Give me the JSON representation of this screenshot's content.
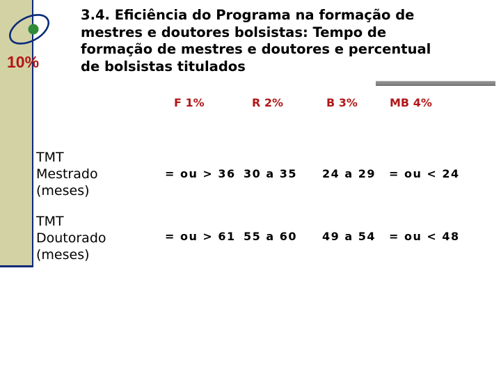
{
  "header": {
    "weight": "10%",
    "title_lines": [
      "3.4. Eficiência do Programa na formação de",
      "mestres e doutores bolsistas: Tempo de",
      "formação de mestres e doutores e percentual",
      "de bolsistas titulados"
    ]
  },
  "table": {
    "columns": [
      {
        "code": "F",
        "percent": "1%"
      },
      {
        "code": "R",
        "percent": "2%"
      },
      {
        "code": "B",
        "percent": "3%"
      },
      {
        "code": "MB",
        "percent": "4%"
      }
    ],
    "rows": [
      {
        "label_lines": [
          "TMT",
          "Mestrado",
          "(meses)"
        ],
        "cells": [
          "= ou > 36",
          "30 a 35",
          "24 a 29",
          "= ou < 24"
        ]
      },
      {
        "label_lines": [
          "TMT",
          "Doutorado",
          "(meses)"
        ],
        "cells": [
          "= ou > 61",
          "55 a 60",
          "49 a 54",
          "= ou < 48"
        ]
      }
    ]
  },
  "colors": {
    "accent_red": "#b01818",
    "side_bar": "#d2d2a4",
    "navy": "#0a2a7a",
    "logo_green": "#2f8a3a"
  },
  "icons": {
    "logo": "orbit-logo-icon"
  }
}
